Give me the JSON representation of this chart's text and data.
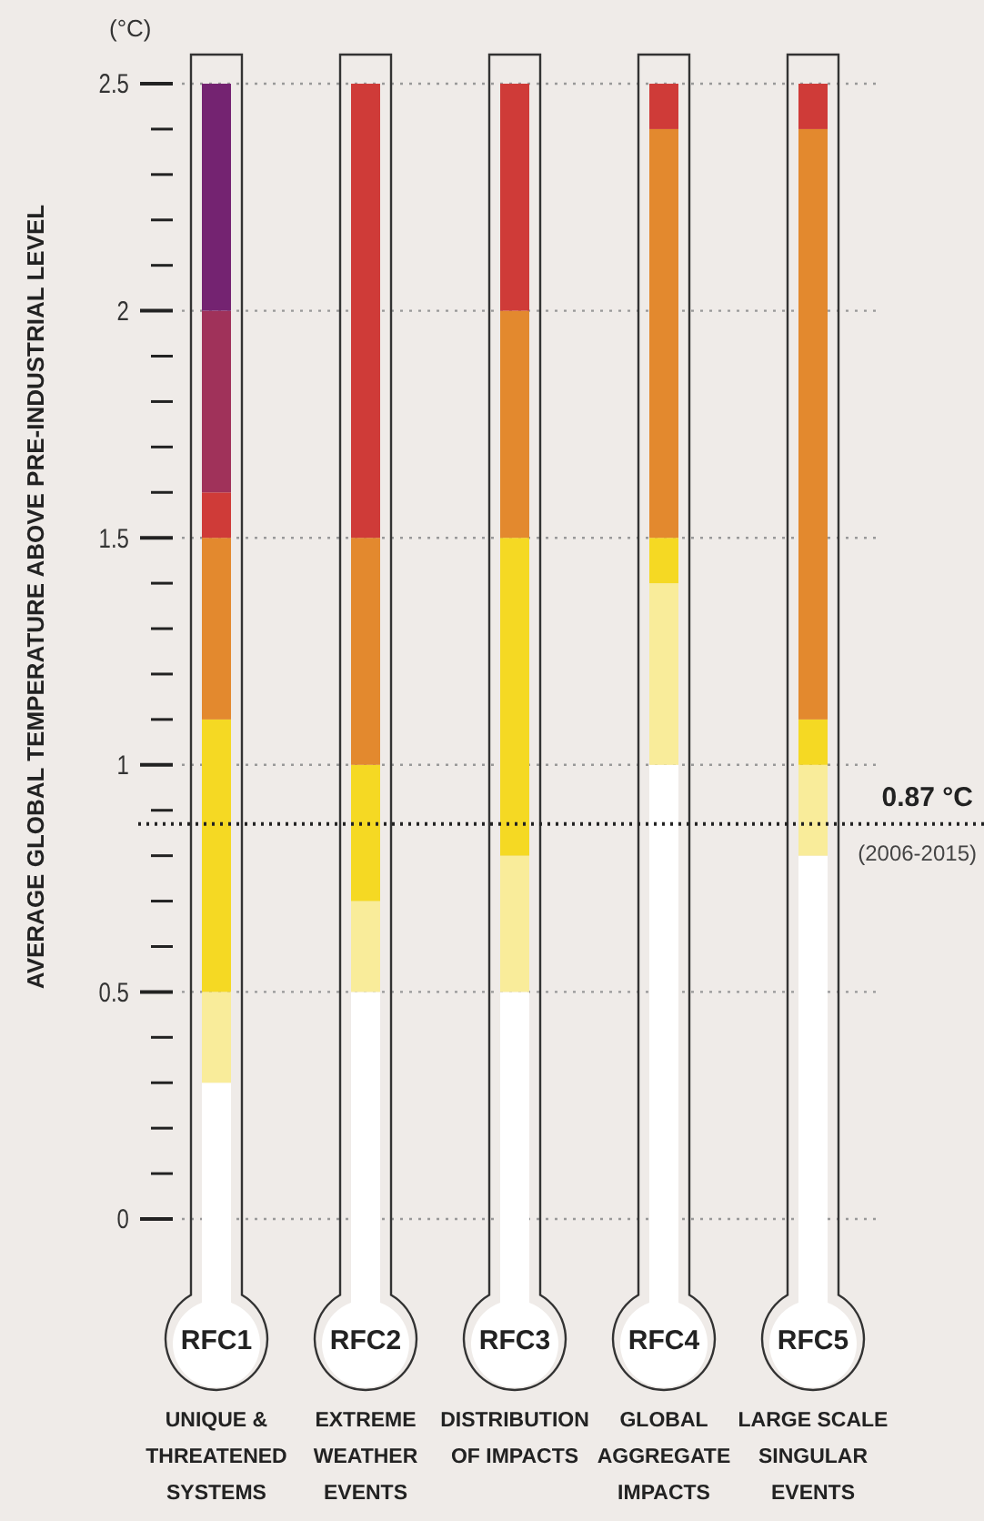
{
  "chart_data": {
    "type": "bar",
    "stacked": true,
    "ylabel": "AVERAGE GLOBAL TEMPERATURE ABOVE PRE-INDUSTRIAL LEVEL",
    "categories": [
      "UNIQUE & THREATENED SYSTEMS",
      "EXTREME WEATHER EVENTS",
      "DISTRIBUTION OF IMPACTS",
      "GLOBAL AGGREGATE IMPACTS",
      "LARGE SCALE SINGULAR EVENTS"
    ],
    "series": [
      {
        "color": "#ffffff",
        "values": [
          0.3,
          0.5,
          0.5,
          1.0,
          0.8
        ]
      },
      {
        "color": "#f9ec9a",
        "values": [
          0.2,
          0.2,
          0.3,
          0.4,
          0.2
        ]
      },
      {
        "color": "#f5d923",
        "values": [
          0.6,
          0.3,
          0.7,
          0.1,
          0.1
        ]
      },
      {
        "color": "#e3892e",
        "values": [
          0.4,
          0.5,
          0.5,
          0.9,
          1.3
        ]
      },
      {
        "color": "#cf3b38",
        "values": [
          0.1,
          1.0,
          0.5,
          0.1,
          0.1
        ]
      },
      {
        "color": "#a0325a",
        "values": [
          0.4,
          0,
          0,
          0,
          0
        ]
      },
      {
        "color": "#742371",
        "values": [
          0.5,
          0,
          0,
          0,
          0
        ]
      }
    ],
    "ylim": [
      0,
      2.5
    ],
    "yticks": [
      0,
      {
        "value": 0.1,
        "label": null
      },
      {
        "value": 0.2,
        "label": null
      },
      {
        "value": 0.3,
        "label": null
      },
      {
        "value": 0.4,
        "label": null
      },
      0.5,
      {
        "value": 0.6,
        "label": null
      },
      {
        "value": 0.7,
        "label": null
      },
      {
        "value": 0.8,
        "label": null
      },
      {
        "value": 0.9,
        "label": null
      },
      1,
      {
        "value": 1.1,
        "label": null
      },
      {
        "value": 1.2,
        "label": null
      },
      {
        "value": 1.3,
        "label": null
      },
      {
        "value": 1.4,
        "label": null
      },
      1.5,
      {
        "value": 1.6,
        "label": null
      },
      {
        "value": 1.7,
        "label": null
      },
      {
        "value": 1.8,
        "label": null
      },
      {
        "value": 1.9,
        "label": null
      },
      2,
      {
        "value": 2.1,
        "label": null
      },
      {
        "value": 2.2,
        "label": null
      },
      {
        "value": 2.3,
        "label": null
      },
      {
        "value": 2.4,
        "label": null
      },
      2.5
    ],
    "grid": "y",
    "ref_lines": [
      {
        "axis": "y",
        "value": 0.87,
        "label": "0.87 °C",
        "color": "#222222",
        "line_style": "dotted"
      }
    ],
    "annotations": [
      "(°C)",
      {
        "text": "(2006-2015)",
        "y": 0.87
      },
      "RFC1",
      "RFC2",
      "RFC3",
      "RFC4",
      "RFC5"
    ]
  }
}
